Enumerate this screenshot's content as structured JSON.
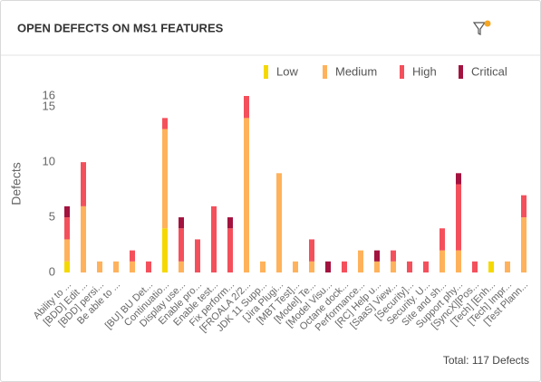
{
  "header": {
    "title": "OPEN DEFECTS ON MS1 FEATURES"
  },
  "chart_data": {
    "type": "stacked_bar",
    "y_label": "Defects",
    "categories": [
      "Ability to ...",
      "[BDD] Edit ...",
      "[BDD] persi...",
      "Be able to ...",
      null,
      "[BU] BU Det...",
      "Continuatio...",
      "Display use...",
      "Enable pro...",
      "Enable test...",
      "Fix perform...",
      "[FROALA 2/2...",
      "JDK 11 Supp...",
      "[Jira Plugi...",
      "[MBT Test]...",
      "[Model] Te...",
      "[Model Visu...",
      "Octane dock...",
      "Performance...",
      "[RC] Help u...",
      "[SaaS] View...",
      "[Security]...",
      "Security. U...",
      "Site and sh...",
      "Support phy...",
      "[SyncX][Pos...",
      "[Tech] [Enh...",
      "[Tech] Impr...",
      "[Test Plann..."
    ],
    "series": [
      {
        "name": "Low",
        "color": "#f5d800",
        "values": [
          1,
          0,
          0,
          0,
          0,
          0,
          4,
          0,
          0,
          0,
          0,
          0,
          0,
          0,
          0,
          0,
          0,
          0,
          0,
          0,
          0,
          0,
          0,
          0,
          0,
          0,
          1,
          0,
          0
        ]
      },
      {
        "name": "Medium",
        "color": "#ffb25b",
        "values": [
          2,
          6,
          1,
          1,
          1,
          0,
          9,
          1,
          0,
          0,
          0,
          14,
          1,
          9,
          1,
          1,
          0,
          0,
          2,
          1,
          1,
          0,
          0,
          2,
          2,
          0,
          0,
          1,
          5
        ]
      },
      {
        "name": "High",
        "color": "#f4505c",
        "values": [
          2,
          4,
          0,
          0,
          1,
          1,
          1,
          3,
          3,
          6,
          4,
          2,
          0,
          0,
          0,
          2,
          0,
          1,
          0,
          0,
          1,
          1,
          1,
          2,
          6,
          1,
          0,
          0,
          2
        ]
      },
      {
        "name": "Critical",
        "color": "#a3133f",
        "values": [
          1,
          0,
          0,
          0,
          0,
          0,
          0,
          1,
          0,
          0,
          1,
          0,
          0,
          0,
          0,
          0,
          1,
          0,
          0,
          1,
          0,
          0,
          0,
          0,
          1,
          0,
          0,
          0,
          0
        ]
      }
    ],
    "ylim": [
      0,
      16
    ],
    "yticks": [
      0,
      5,
      10,
      15,
      16
    ],
    "legend": "top-right",
    "footer": "Total: 117 Defects"
  }
}
